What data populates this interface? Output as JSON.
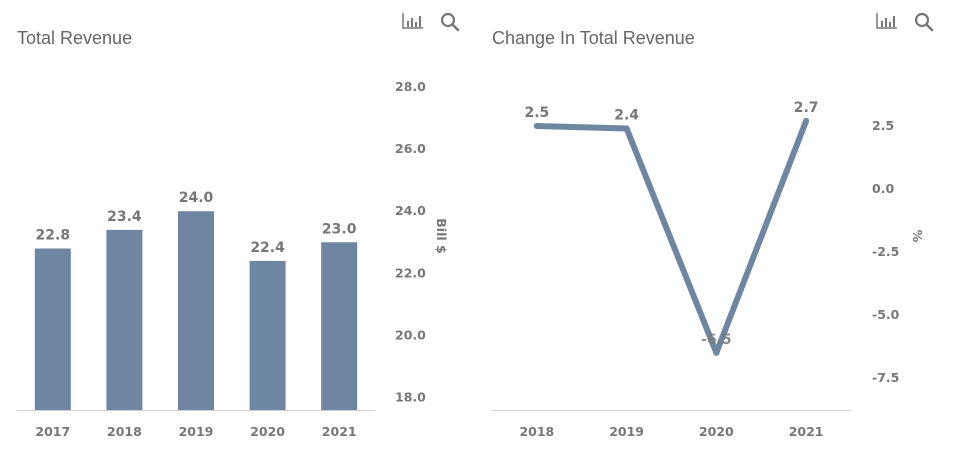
{
  "colors": {
    "series": "#6f86a3",
    "axis_text": "#777777",
    "baseline": "#d0d0d0",
    "title": "#666666"
  },
  "icons": {
    "chart_type": "bar-chart-icon",
    "zoom": "search-icon"
  },
  "chart_data": [
    {
      "type": "bar",
      "title": "Total Revenue",
      "categories": [
        "2017",
        "2018",
        "2019",
        "2020",
        "2021"
      ],
      "values": [
        22.8,
        23.4,
        24.0,
        22.4,
        23.0
      ],
      "data_labels": [
        "22.8",
        "23.4",
        "24.0",
        "22.4",
        "23.0"
      ],
      "xlabel": "",
      "ylabel": "Bill $",
      "y_ticks": [
        "18.0",
        "20.0",
        "22.0",
        "24.0",
        "26.0",
        "28.0"
      ],
      "ylim": [
        17.6,
        28.0
      ],
      "y_axis_position": "right",
      "grid": false,
      "legend": "none"
    },
    {
      "type": "line",
      "title": "Change In Total Revenue",
      "categories": [
        "2018",
        "2019",
        "2020",
        "2021"
      ],
      "values": [
        2.5,
        2.4,
        -6.5,
        2.7
      ],
      "data_labels": [
        "2.5",
        "2.4",
        "-6.5",
        "2.7"
      ],
      "xlabel": "",
      "ylabel": "%",
      "y_ticks": [
        "-7.5",
        "-5.0",
        "-2.5",
        "0.0",
        "2.5"
      ],
      "ylim": [
        -8.8,
        2.5
      ],
      "y_axis_position": "right",
      "grid": false,
      "legend": "none"
    }
  ]
}
